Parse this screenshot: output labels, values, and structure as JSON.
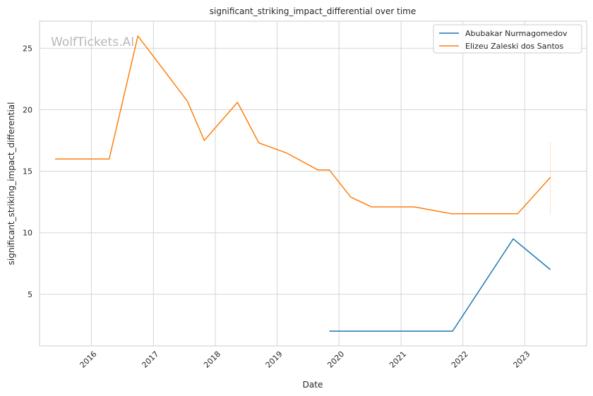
{
  "chart_data": {
    "type": "line",
    "title": "significant_striking_impact_differential over time",
    "xlabel": "Date",
    "ylabel": "significant_striking_impact_differential",
    "watermark": "WolfTickets.AI",
    "x_ticks": [
      "2016",
      "2017",
      "2018",
      "2019",
      "2020",
      "2021",
      "2022",
      "2023"
    ],
    "y_ticks": [
      "5",
      "10",
      "15",
      "20",
      "25"
    ],
    "xlim": [
      "2015-03-01",
      "2024-01-01"
    ],
    "ylim": [
      0.8,
      27.2
    ],
    "grid": true,
    "legend_position": "top-right",
    "series": [
      {
        "name": "Abubakar Nurmagomedov",
        "color": "#1f77b4",
        "points": [
          {
            "x": "2019-11-05",
            "y": 2.0
          },
          {
            "x": "2021-11-01",
            "y": 2.0
          },
          {
            "x": "2022-10-25",
            "y": 9.5
          },
          {
            "x": "2023-06-01",
            "y": 7.0
          }
        ]
      },
      {
        "name": "Elizeu Zaleski dos Santos",
        "color": "#ff7f0e",
        "points": [
          {
            "x": "2015-06-01",
            "y": 16.0
          },
          {
            "x": "2016-04-15",
            "y": 16.0
          },
          {
            "x": "2016-10-01",
            "y": 26.0
          },
          {
            "x": "2017-07-20",
            "y": 20.7
          },
          {
            "x": "2017-10-28",
            "y": 17.5
          },
          {
            "x": "2018-05-12",
            "y": 20.6
          },
          {
            "x": "2018-09-15",
            "y": 17.3
          },
          {
            "x": "2019-02-23",
            "y": 16.5
          },
          {
            "x": "2019-08-30",
            "y": 15.1
          },
          {
            "x": "2019-11-05",
            "y": 15.1
          },
          {
            "x": "2020-03-10",
            "y": 12.9
          },
          {
            "x": "2020-07-10",
            "y": 12.1
          },
          {
            "x": "2021-03-20",
            "y": 12.1
          },
          {
            "x": "2021-10-25",
            "y": 11.55
          },
          {
            "x": "2022-11-20",
            "y": 11.55
          },
          {
            "x": "2023-06-01",
            "y": 14.5
          }
        ],
        "error_band": {
          "x": "2023-06-01",
          "low": 11.5,
          "high": 17.4
        }
      }
    ]
  }
}
